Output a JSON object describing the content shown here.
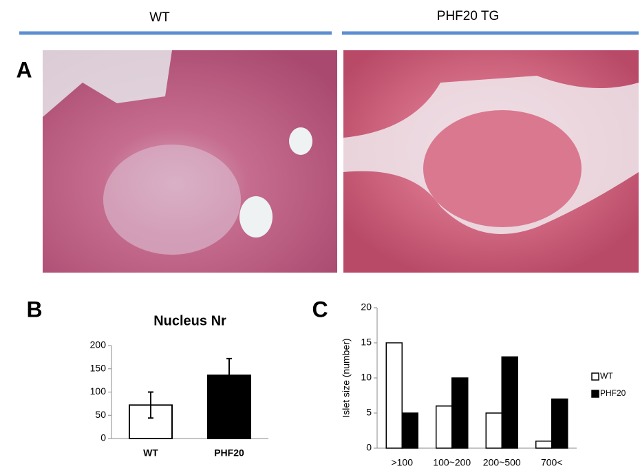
{
  "header": {
    "left": "WT",
    "right": "PHF20 TG"
  },
  "panel_labels": [
    "A",
    "B",
    "C"
  ],
  "chart_data": [
    {
      "type": "bar",
      "title": "Nucleus Nr",
      "categories": [
        "WT",
        "PHF20"
      ],
      "values": [
        72,
        136
      ],
      "errors": [
        28,
        36
      ],
      "colors": [
        "#ffffff",
        "#000000"
      ],
      "ylim": [
        0,
        200
      ],
      "yticks": [
        0,
        50,
        100,
        150,
        200
      ]
    },
    {
      "type": "grouped-bar",
      "ylabel": "Islet size (number)",
      "categories": [
        ">100",
        "100~200",
        "200~500",
        "700<"
      ],
      "series": [
        {
          "name": "WT",
          "color": "#ffffff",
          "values": [
            15,
            6,
            5,
            1
          ]
        },
        {
          "name": "PHF20",
          "color": "#000000",
          "values": [
            5,
            10,
            13,
            7
          ]
        }
      ],
      "ylim": [
        0,
        20
      ],
      "yticks": [
        0,
        5,
        10,
        15,
        20
      ],
      "legend": "right"
    }
  ]
}
